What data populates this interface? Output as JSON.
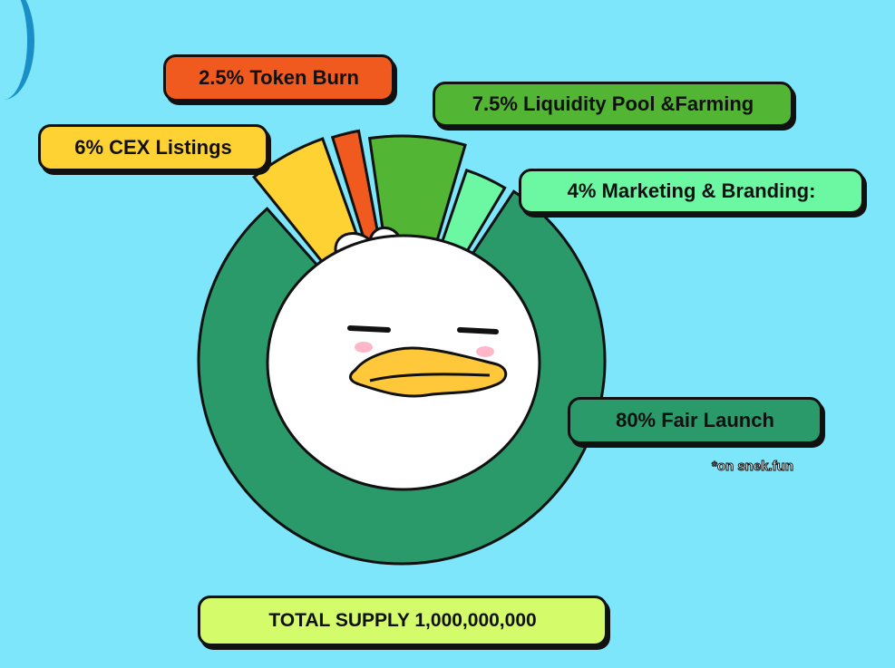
{
  "chart_data": {
    "type": "pie",
    "title": "",
    "total_label": "TOTAL SUPPLY 1,000,000,000",
    "footnote": "*on snek.fun",
    "slices": [
      {
        "label": "80% Fair Launch",
        "value": 80,
        "color": "#2a9a6a"
      },
      {
        "label": "6% CEX Listings",
        "value": 6,
        "color": "#ffd233"
      },
      {
        "label": "2.5% Token Burn",
        "value": 2.5,
        "color": "#f05a1e"
      },
      {
        "label": "7.5% Liquidity Pool &Farming",
        "value": 7.5,
        "color": "#52b534"
      },
      {
        "label": "4% Marketing & Branding:",
        "value": 4,
        "color": "#6cf7a2"
      }
    ]
  },
  "colors": {
    "background": "#7ee6fb",
    "outline": "#111111",
    "total_box": "#d4fb6a"
  },
  "icons": {
    "center": "duck-mascot-icon"
  }
}
